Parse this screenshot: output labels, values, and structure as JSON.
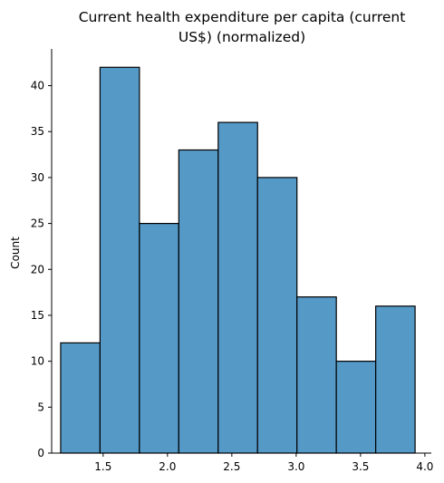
{
  "chart_data": {
    "type": "histogram",
    "title_lines": [
      "Current health expenditure per capita (current",
      "US$) (normalized)"
    ],
    "xlabel": "",
    "ylabel": "Count",
    "xlim": [
      1.1,
      4.05
    ],
    "ylim": [
      0,
      44
    ],
    "bin_edges": [
      1.17,
      1.476,
      1.782,
      2.088,
      2.394,
      2.7,
      3.006,
      3.312,
      3.618,
      3.924
    ],
    "counts": [
      12,
      42,
      25,
      33,
      36,
      30,
      17,
      10,
      16
    ],
    "x_ticks": [
      1.5,
      2.0,
      2.5,
      3.0,
      3.5,
      4.0
    ],
    "x_tick_labels": [
      "1.5",
      "2.0",
      "2.5",
      "3.0",
      "3.5",
      "4.0"
    ],
    "y_ticks": [
      0,
      5,
      10,
      15,
      20,
      25,
      30,
      35,
      40
    ],
    "y_tick_labels": [
      "0",
      "5",
      "10",
      "15",
      "20",
      "25",
      "30",
      "35",
      "40"
    ],
    "bar_color": "#5599c7",
    "edge_color": "#000000"
  }
}
